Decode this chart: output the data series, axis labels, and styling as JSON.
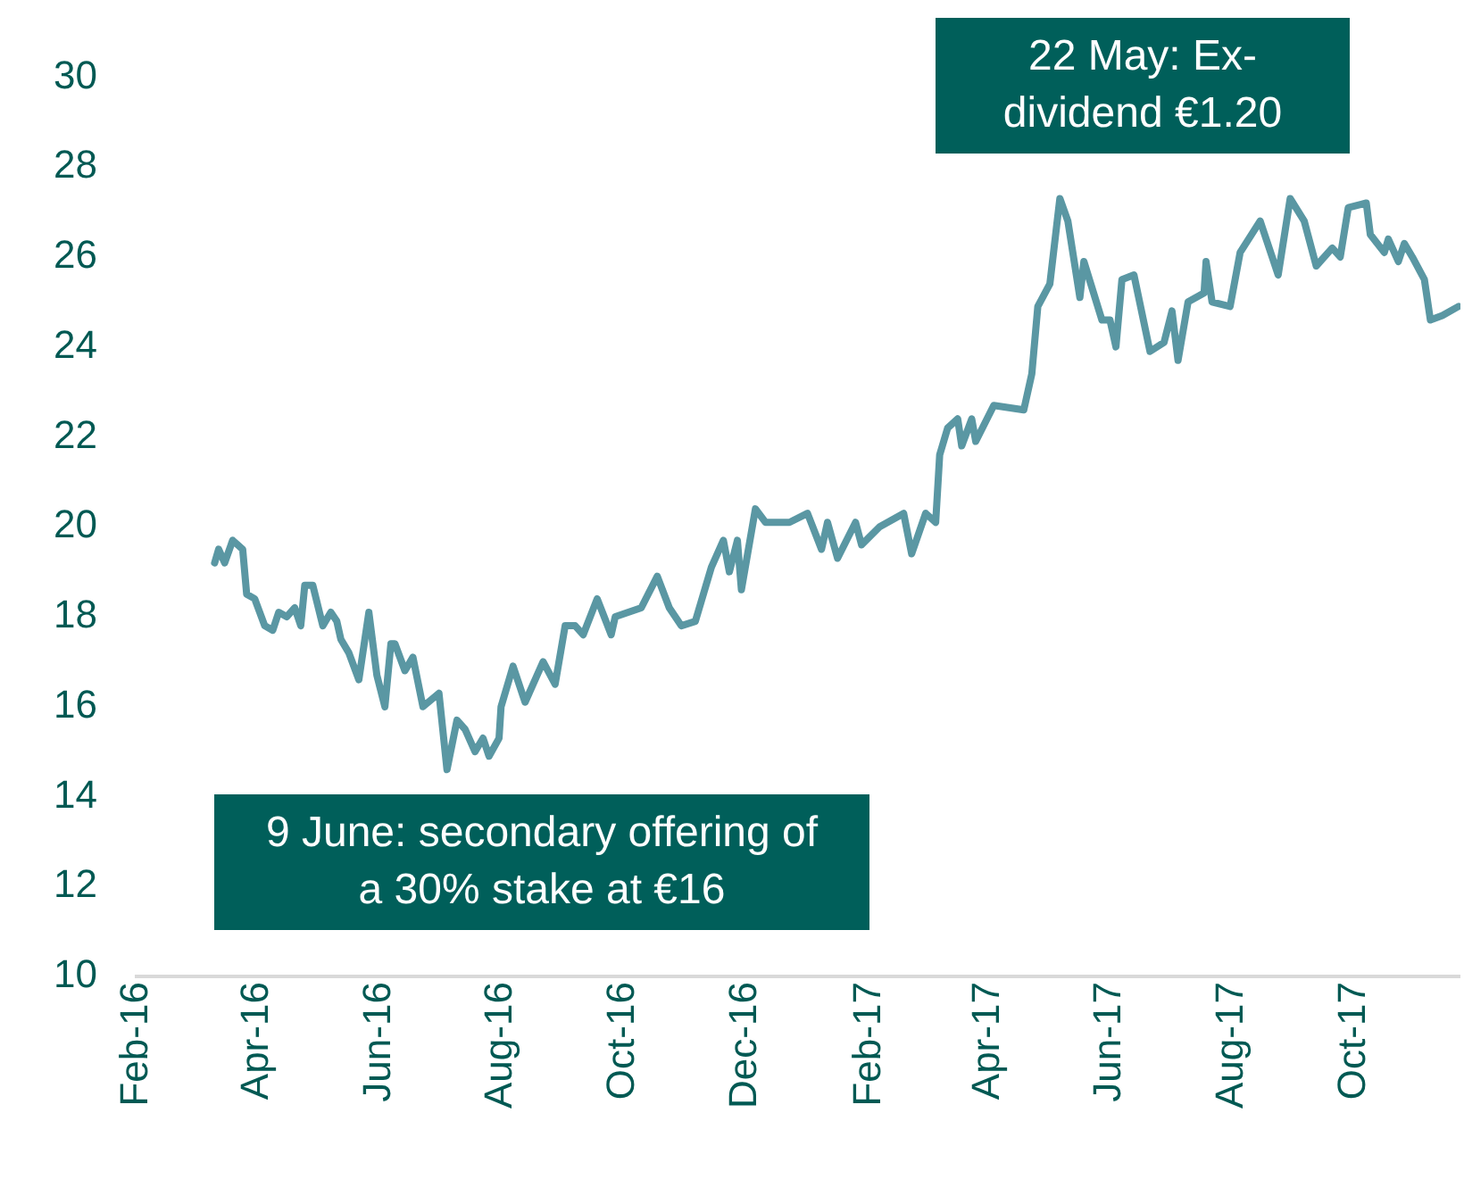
{
  "chart_data": {
    "type": "line",
    "x": [
      "2016-03-11",
      "2016-03-13",
      "2016-03-16",
      "2016-03-20",
      "2016-03-25",
      "2016-03-27",
      "2016-03-31",
      "2016-04-05",
      "2016-04-09",
      "2016-04-12",
      "2016-04-16",
      "2016-04-20",
      "2016-04-23",
      "2016-04-25",
      "2016-04-29",
      "2016-05-04",
      "2016-05-08",
      "2016-05-11",
      "2016-05-13",
      "2016-05-17",
      "2016-05-22",
      "2016-05-27",
      "2016-05-31",
      "2016-06-04",
      "2016-06-07",
      "2016-06-09",
      "2016-06-14",
      "2016-06-18",
      "2016-06-23",
      "2016-07-01",
      "2016-07-05",
      "2016-07-10",
      "2016-07-14",
      "2016-07-19",
      "2016-07-23",
      "2016-07-26",
      "2016-07-31",
      "2016-08-01",
      "2016-08-07",
      "2016-08-13",
      "2016-08-22",
      "2016-08-28",
      "2016-09-02",
      "2016-09-07",
      "2016-09-11",
      "2016-09-18",
      "2016-09-25",
      "2016-09-27",
      "2016-10-10",
      "2016-10-18",
      "2016-10-24",
      "2016-10-30",
      "2016-11-06",
      "2016-11-14",
      "2016-11-20",
      "2016-11-23",
      "2016-11-27",
      "2016-11-29",
      "2016-12-06",
      "2016-12-11",
      "2016-12-23",
      "2017-01-01",
      "2017-01-08",
      "2017-01-11",
      "2017-01-16",
      "2017-01-25",
      "2017-01-28",
      "2017-02-06",
      "2017-02-18",
      "2017-02-22",
      "2017-03-01",
      "2017-03-06",
      "2017-03-08",
      "2017-03-12",
      "2017-03-17",
      "2017-03-19",
      "2017-03-24",
      "2017-03-26",
      "2017-04-04",
      "2017-04-19",
      "2017-04-23",
      "2017-04-26",
      "2017-05-02",
      "2017-05-07",
      "2017-05-11",
      "2017-05-17",
      "2017-05-19",
      "2017-05-28",
      "2017-06-01",
      "2017-06-04",
      "2017-06-07",
      "2017-06-13",
      "2017-06-21",
      "2017-06-28",
      "2017-07-02",
      "2017-07-05",
      "2017-07-10",
      "2017-07-18",
      "2017-07-19",
      "2017-07-22",
      "2017-07-31",
      "2017-08-05",
      "2017-08-15",
      "2017-08-24",
      "2017-08-30",
      "2017-09-06",
      "2017-09-12",
      "2017-09-20",
      "2017-09-24",
      "2017-09-28",
      "2017-10-07",
      "2017-10-09",
      "2017-10-16",
      "2017-10-18",
      "2017-10-23",
      "2017-10-26",
      "2017-10-30",
      "2017-11-05",
      "2017-11-08",
      "2017-11-14",
      "2017-11-22"
    ],
    "series": [
      {
        "color": "#5a97a3",
        "values": [
          19.2,
          19.5,
          19.2,
          19.7,
          19.5,
          18.5,
          18.4,
          17.8,
          17.7,
          18.1,
          18.0,
          18.2,
          17.8,
          18.7,
          18.7,
          17.8,
          18.1,
          17.9,
          17.5,
          17.2,
          16.6,
          18.1,
          16.7,
          16.0,
          17.4,
          17.4,
          16.8,
          17.1,
          16.0,
          16.3,
          14.6,
          15.7,
          15.5,
          15.0,
          15.3,
          14.9,
          15.3,
          16.0,
          16.9,
          16.1,
          17.0,
          16.5,
          17.8,
          17.8,
          17.6,
          18.4,
          17.6,
          18.0,
          18.2,
          18.9,
          18.2,
          17.8,
          17.9,
          19.1,
          19.7,
          19.0,
          19.7,
          18.6,
          20.4,
          20.1,
          20.1,
          20.3,
          19.5,
          20.1,
          19.3,
          20.1,
          19.6,
          20.0,
          20.3,
          19.4,
          20.3,
          20.1,
          21.6,
          22.2,
          22.4,
          21.8,
          22.4,
          21.9,
          22.7,
          22.6,
          23.4,
          24.9,
          25.4,
          27.3,
          26.8,
          25.1,
          25.9,
          24.6,
          24.6,
          24.0,
          25.5,
          25.6,
          23.9,
          24.1,
          24.8,
          23.7,
          25.0,
          25.2,
          25.9,
          25.0,
          24.9,
          26.1,
          26.8,
          25.6,
          27.3,
          26.8,
          25.8,
          26.2,
          26.0,
          27.1,
          27.2,
          26.5,
          26.1,
          26.4,
          25.9,
          26.3,
          26.0,
          25.5,
          24.6,
          24.7,
          24.9
        ]
      }
    ],
    "xlim": [
      "2016-02-01",
      "2017-11-23"
    ],
    "xticks": [
      {
        "value": "2016-02-01",
        "label": "Feb-16"
      },
      {
        "value": "2016-04-01",
        "label": "Apr-16"
      },
      {
        "value": "2016-06-01",
        "label": "Jun-16"
      },
      {
        "value": "2016-08-01",
        "label": "Aug-16"
      },
      {
        "value": "2016-10-01",
        "label": "Oct-16"
      },
      {
        "value": "2016-12-01",
        "label": "Dec-16"
      },
      {
        "value": "2017-02-01",
        "label": "Feb-17"
      },
      {
        "value": "2017-04-01",
        "label": "Apr-17"
      },
      {
        "value": "2017-06-01",
        "label": "Jun-17"
      },
      {
        "value": "2017-08-01",
        "label": "Aug-17"
      },
      {
        "value": "2017-10-01",
        "label": "Oct-17"
      }
    ],
    "ylim": [
      10,
      30
    ],
    "yticks": [
      10,
      12,
      14,
      16,
      18,
      20,
      22,
      24,
      26,
      28,
      30
    ],
    "grid": false,
    "legend": false,
    "marker": "none",
    "line_style": "solid",
    "annotations": [
      "22 May: Ex-dividend €1.20",
      "9 June: secondary offering of a 30% stake at €16"
    ]
  }
}
